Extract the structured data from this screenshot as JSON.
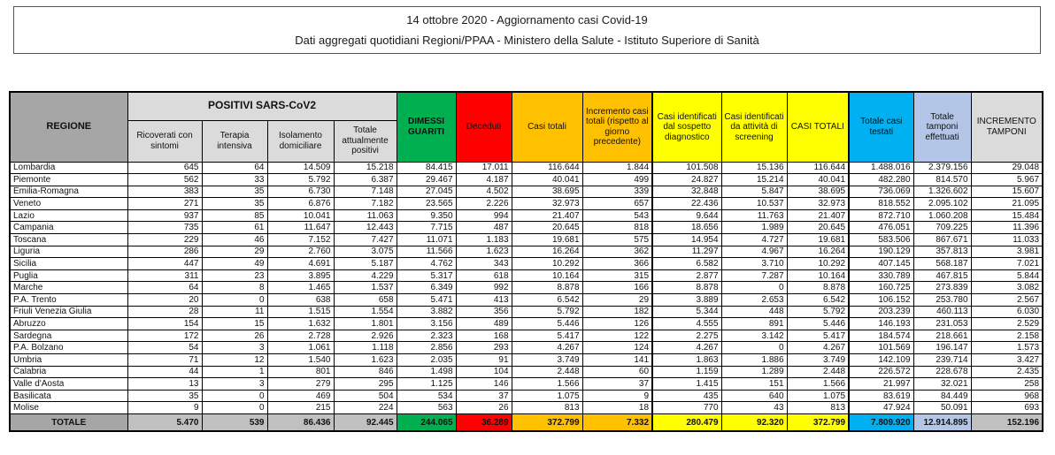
{
  "title": {
    "line1": "14 ottobre 2020 - Aggiornamento casi Covid-19",
    "line2": "Dati aggregati quotidiani Regioni/PPAA - Ministero della Salute - Istituto Superiore di Sanità"
  },
  "colors": {
    "green": "#00B050",
    "red": "#FF0000",
    "orange": "#FFC000",
    "yellow": "#FFFF00",
    "cyan": "#00B0F0",
    "lavender": "#B4C6E7",
    "light_gray": "#DBDBDB",
    "mid_gray": "#A6A6A6",
    "total_cell_gray": "#C0C0C0"
  },
  "table": {
    "header": {
      "regione": "REGIONE",
      "positivi_group": "POSITIVI SARS-CoV2",
      "positivi_sub": [
        "Ricoverati con sintomi",
        "Terapia intensiva",
        "Isolamento domiciliare",
        "Totale attualmente positivi"
      ],
      "dimessi": "DIMESSI GUARITI",
      "deceduti": "Deceduti",
      "casi_totali": "Casi totali",
      "incremento_casi": "Incremento casi totali (rispetto al giorno precedente)",
      "sospetto": "Casi identificati dal sospetto diagnostico",
      "screening": "Casi identificati da attività di screening",
      "casi_totali_2": "CASI TOTALI",
      "casi_testati": "Totale casi testati",
      "tamponi": "Totale tamponi effettuati",
      "incremento_tamponi": "INCREMENTO TAMPONI"
    },
    "rows": [
      {
        "regione": "Lombardia",
        "values": [
          "645",
          "64",
          "14.509",
          "15.218",
          "84.415",
          "17.011",
          "116.644",
          "1.844",
          "101.508",
          "15.136",
          "116.644",
          "1.488.016",
          "2.379.156",
          "29.048"
        ]
      },
      {
        "regione": "Piemonte",
        "values": [
          "562",
          "33",
          "5.792",
          "6.387",
          "29.467",
          "4.187",
          "40.041",
          "499",
          "24.827",
          "15.214",
          "40.041",
          "482.280",
          "814.570",
          "5.967"
        ]
      },
      {
        "regione": "Emilia-Romagna",
        "values": [
          "383",
          "35",
          "6.730",
          "7.148",
          "27.045",
          "4.502",
          "38.695",
          "339",
          "32.848",
          "5.847",
          "38.695",
          "736.069",
          "1.326.602",
          "15.607"
        ]
      },
      {
        "regione": "Veneto",
        "values": [
          "271",
          "35",
          "6.876",
          "7.182",
          "23.565",
          "2.226",
          "32.973",
          "657",
          "22.436",
          "10.537",
          "32.973",
          "818.552",
          "2.095.102",
          "21.095"
        ]
      },
      {
        "regione": "Lazio",
        "values": [
          "937",
          "85",
          "10.041",
          "11.063",
          "9.350",
          "994",
          "21.407",
          "543",
          "9.644",
          "11.763",
          "21.407",
          "872.710",
          "1.060.208",
          "15.484"
        ]
      },
      {
        "regione": "Campania",
        "values": [
          "735",
          "61",
          "11.647",
          "12.443",
          "7.715",
          "487",
          "20.645",
          "818",
          "18.656",
          "1.989",
          "20.645",
          "476.051",
          "709.225",
          "11.396"
        ]
      },
      {
        "regione": "Toscana",
        "values": [
          "229",
          "46",
          "7.152",
          "7.427",
          "11.071",
          "1.183",
          "19.681",
          "575",
          "14.954",
          "4.727",
          "19.681",
          "583.506",
          "867.671",
          "11.033"
        ]
      },
      {
        "regione": "Liguria",
        "values": [
          "286",
          "29",
          "2.760",
          "3.075",
          "11.566",
          "1.623",
          "16.264",
          "362",
          "11.297",
          "4.967",
          "16.264",
          "190.129",
          "357.813",
          "3.981"
        ]
      },
      {
        "regione": "Sicilia",
        "values": [
          "447",
          "49",
          "4.691",
          "5.187",
          "4.762",
          "343",
          "10.292",
          "366",
          "6.582",
          "3.710",
          "10.292",
          "407.145",
          "568.187",
          "7.021"
        ]
      },
      {
        "regione": "Puglia",
        "values": [
          "311",
          "23",
          "3.895",
          "4.229",
          "5.317",
          "618",
          "10.164",
          "315",
          "2.877",
          "7.287",
          "10.164",
          "330.789",
          "467.815",
          "5.844"
        ]
      },
      {
        "regione": "Marche",
        "values": [
          "64",
          "8",
          "1.465",
          "1.537",
          "6.349",
          "992",
          "8.878",
          "166",
          "8.878",
          "0",
          "8.878",
          "160.725",
          "273.839",
          "3.082"
        ]
      },
      {
        "regione": "P.A. Trento",
        "values": [
          "20",
          "0",
          "638",
          "658",
          "5.471",
          "413",
          "6.542",
          "29",
          "3.889",
          "2.653",
          "6.542",
          "106.152",
          "253.780",
          "2.567"
        ]
      },
      {
        "regione": "Friuli Venezia Giulia",
        "values": [
          "28",
          "11",
          "1.515",
          "1.554",
          "3.882",
          "356",
          "5.792",
          "182",
          "5.344",
          "448",
          "5.792",
          "203.239",
          "460.113",
          "6.030"
        ]
      },
      {
        "regione": "Abruzzo",
        "values": [
          "154",
          "15",
          "1.632",
          "1.801",
          "3.156",
          "489",
          "5.446",
          "126",
          "4.555",
          "891",
          "5.446",
          "146.193",
          "231.053",
          "2.529"
        ]
      },
      {
        "regione": "Sardegna",
        "values": [
          "172",
          "26",
          "2.728",
          "2.926",
          "2.323",
          "168",
          "5.417",
          "122",
          "2.275",
          "3.142",
          "5.417",
          "184.574",
          "218.661",
          "2.158"
        ]
      },
      {
        "regione": "P.A. Bolzano",
        "values": [
          "54",
          "3",
          "1.061",
          "1.118",
          "2.856",
          "293",
          "4.267",
          "124",
          "4.267",
          "0",
          "4.267",
          "101.569",
          "196.147",
          "1.573"
        ]
      },
      {
        "regione": "Umbria",
        "values": [
          "71",
          "12",
          "1.540",
          "1.623",
          "2.035",
          "91",
          "3.749",
          "141",
          "1.863",
          "1.886",
          "3.749",
          "142.109",
          "239.714",
          "3.427"
        ]
      },
      {
        "regione": "Calabria",
        "values": [
          "44",
          "1",
          "801",
          "846",
          "1.498",
          "104",
          "2.448",
          "60",
          "1.159",
          "1.289",
          "2.448",
          "226.572",
          "228.678",
          "2.435"
        ]
      },
      {
        "regione": "Valle d'Aosta",
        "values": [
          "13",
          "3",
          "279",
          "295",
          "1.125",
          "146",
          "1.566",
          "37",
          "1.415",
          "151",
          "1.566",
          "21.997",
          "32.021",
          "258"
        ]
      },
      {
        "regione": "Basilicata",
        "values": [
          "35",
          "0",
          "469",
          "504",
          "534",
          "37",
          "1.075",
          "9",
          "435",
          "640",
          "1.075",
          "83.619",
          "84.449",
          "968"
        ]
      },
      {
        "regione": "Molise",
        "values": [
          "9",
          "0",
          "215",
          "224",
          "563",
          "26",
          "813",
          "18",
          "770",
          "43",
          "813",
          "47.924",
          "50.091",
          "693"
        ]
      }
    ],
    "total": {
      "label": "TOTALE",
      "values": [
        "5.470",
        "539",
        "86.436",
        "92.445",
        "244.065",
        "36.289",
        "372.799",
        "7.332",
        "280.479",
        "92.320",
        "372.799",
        "7.809.920",
        "12.914.895",
        "152.196"
      ]
    }
  }
}
